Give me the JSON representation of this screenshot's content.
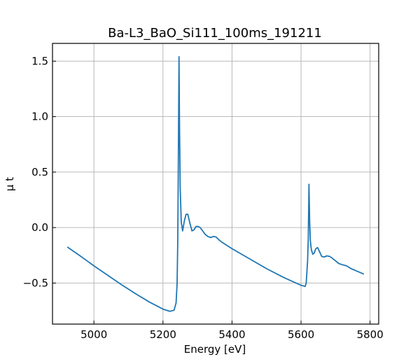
{
  "chart_data": {
    "type": "line",
    "title": "Ba-L3_BaO_Si111_100ms_191211",
    "xlabel": "Energy [eV]",
    "ylabel": "μ t",
    "xlim": [
      4880,
      5825
    ],
    "ylim": [
      -0.87,
      1.66
    ],
    "xticks": [
      5000,
      5200,
      5400,
      5600,
      5800
    ],
    "yticks": [
      1.5,
      1.0,
      0.5,
      0.0,
      -0.5
    ],
    "ytick_labels": [
      "1.5",
      "1.0",
      "0.5",
      "0.0",
      "−0.5"
    ],
    "grid": true,
    "series": [
      {
        "color": "#1f77b4",
        "x": [
          4923,
          4960,
          5000,
          5040,
          5080,
          5120,
          5160,
          5200,
          5220,
          5232,
          5238,
          5241,
          5243,
          5245,
          5246.5,
          5248,
          5250,
          5253,
          5257,
          5262,
          5267,
          5272,
          5278,
          5284,
          5290,
          5296,
          5302,
          5308,
          5315,
          5322,
          5330,
          5338,
          5346,
          5354,
          5362,
          5370,
          5385,
          5400,
          5450,
          5500,
          5550,
          5600,
          5612,
          5615,
          5617,
          5619,
          5621,
          5623,
          5625,
          5627,
          5630,
          5634,
          5638,
          5643,
          5648,
          5654,
          5660,
          5667,
          5675,
          5683,
          5690,
          5700,
          5710,
          5720,
          5732,
          5745,
          5760,
          5775,
          5782
        ],
        "y": [
          -0.175,
          -0.255,
          -0.345,
          -0.43,
          -0.515,
          -0.595,
          -0.67,
          -0.735,
          -0.755,
          -0.745,
          -0.68,
          -0.5,
          -0.1,
          0.8,
          1.54,
          0.9,
          0.35,
          0.05,
          -0.03,
          0.06,
          0.12,
          0.12,
          0.04,
          -0.03,
          -0.02,
          0.01,
          0.01,
          0.0,
          -0.03,
          -0.06,
          -0.08,
          -0.09,
          -0.08,
          -0.085,
          -0.11,
          -0.13,
          -0.16,
          -0.19,
          -0.28,
          -0.37,
          -0.45,
          -0.52,
          -0.53,
          -0.5,
          -0.4,
          -0.3,
          -0.1,
          0.39,
          0.05,
          -0.12,
          -0.2,
          -0.24,
          -0.23,
          -0.19,
          -0.18,
          -0.22,
          -0.26,
          -0.265,
          -0.255,
          -0.26,
          -0.275,
          -0.3,
          -0.325,
          -0.335,
          -0.345,
          -0.37,
          -0.39,
          -0.41,
          -0.42
        ]
      }
    ]
  }
}
